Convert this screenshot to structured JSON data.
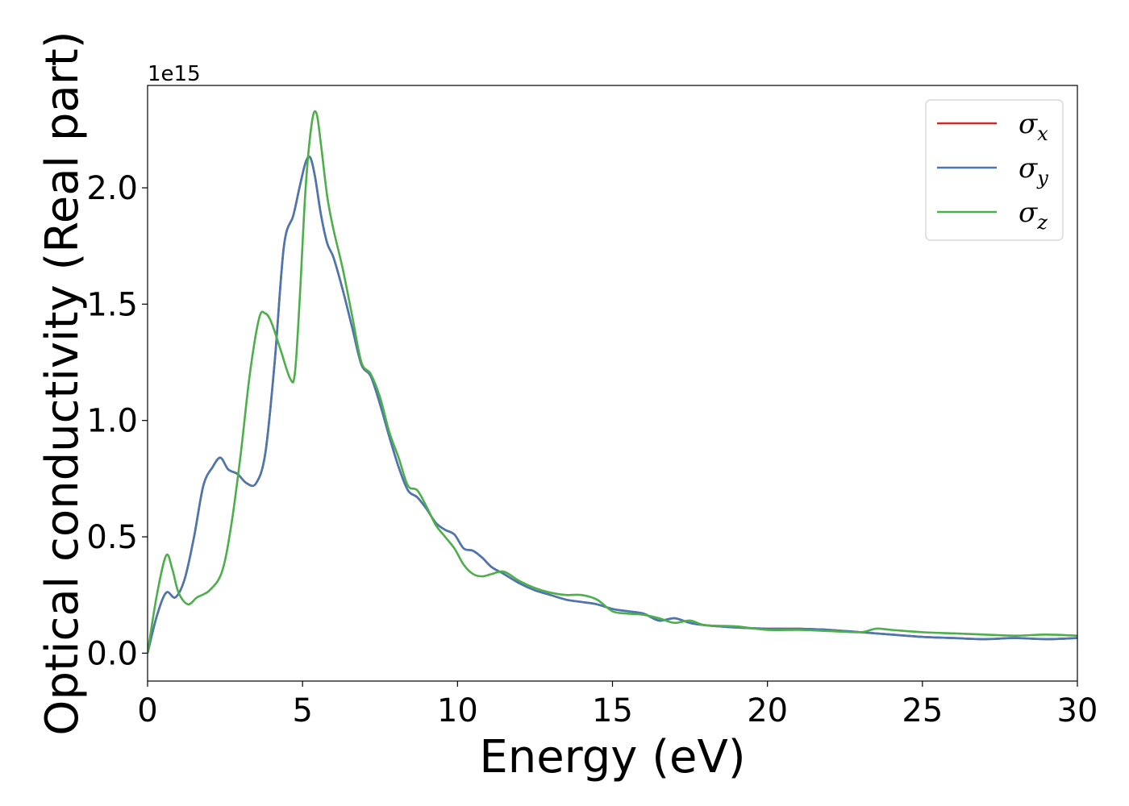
{
  "chart_data": {
    "type": "line",
    "xlabel": "Energy (eV)",
    "ylabel": "Optical conductivity (Real part)",
    "y_offset_text": "1e15",
    "xlim": [
      0,
      30
    ],
    "ylim": [
      -0.12,
      2.44
    ],
    "x_ticks": [
      0,
      5,
      10,
      15,
      20,
      25,
      30
    ],
    "x_tick_labels": [
      "0",
      "5",
      "10",
      "15",
      "20",
      "25",
      "30"
    ],
    "y_ticks": [
      0.0,
      0.5,
      1.0,
      1.5,
      2.0
    ],
    "y_tick_labels": [
      "0.0",
      "0.5",
      "1.0",
      "1.5",
      "2.0"
    ],
    "grid": false,
    "legend_position": "top-right",
    "series": [
      {
        "name": "σ",
        "subscript": "x",
        "color": "#d62728",
        "x": [
          0,
          0.3,
          0.6,
          0.9,
          1.2,
          1.5,
          1.8,
          2.1,
          2.35,
          2.6,
          2.9,
          3.2,
          3.5,
          3.8,
          4.1,
          4.4,
          4.7,
          4.9,
          5.1,
          5.25,
          5.4,
          5.6,
          5.8,
          6.0,
          6.3,
          6.6,
          6.9,
          7.2,
          7.5,
          7.8,
          8.1,
          8.4,
          8.7,
          9.0,
          9.3,
          9.6,
          9.9,
          10.2,
          10.5,
          10.8,
          11.1,
          11.5,
          12.0,
          12.5,
          13.0,
          13.5,
          14.0,
          14.5,
          15.0,
          15.5,
          16.0,
          16.5,
          17.0,
          17.5,
          18.0,
          19.0,
          20.0,
          21.0,
          22.0,
          23.0,
          24.0,
          25.0,
          26.0,
          27.0,
          28.0,
          29.0,
          30.0
        ],
        "y": [
          0.0,
          0.16,
          0.26,
          0.24,
          0.32,
          0.5,
          0.72,
          0.8,
          0.84,
          0.79,
          0.77,
          0.73,
          0.73,
          0.86,
          1.25,
          1.75,
          1.88,
          2.0,
          2.11,
          2.13,
          2.05,
          1.88,
          1.76,
          1.7,
          1.56,
          1.4,
          1.24,
          1.19,
          1.07,
          0.93,
          0.8,
          0.7,
          0.67,
          0.62,
          0.56,
          0.53,
          0.51,
          0.45,
          0.44,
          0.41,
          0.37,
          0.34,
          0.3,
          0.27,
          0.25,
          0.23,
          0.22,
          0.21,
          0.19,
          0.18,
          0.17,
          0.14,
          0.15,
          0.13,
          0.12,
          0.11,
          0.105,
          0.105,
          0.1,
          0.09,
          0.08,
          0.07,
          0.065,
          0.06,
          0.065,
          0.06,
          0.065
        ]
      },
      {
        "name": "σ",
        "subscript": "y",
        "color": "#4878b4",
        "x": [
          0,
          0.3,
          0.6,
          0.9,
          1.2,
          1.5,
          1.8,
          2.1,
          2.35,
          2.6,
          2.9,
          3.2,
          3.5,
          3.8,
          4.1,
          4.4,
          4.7,
          4.9,
          5.1,
          5.25,
          5.4,
          5.6,
          5.8,
          6.0,
          6.3,
          6.6,
          6.9,
          7.2,
          7.5,
          7.8,
          8.1,
          8.4,
          8.7,
          9.0,
          9.3,
          9.6,
          9.9,
          10.2,
          10.5,
          10.8,
          11.1,
          11.5,
          12.0,
          12.5,
          13.0,
          13.5,
          14.0,
          14.5,
          15.0,
          15.5,
          16.0,
          16.5,
          17.0,
          17.5,
          18.0,
          19.0,
          20.0,
          21.0,
          22.0,
          23.0,
          24.0,
          25.0,
          26.0,
          27.0,
          28.0,
          29.0,
          30.0
        ],
        "y": [
          0.0,
          0.16,
          0.26,
          0.24,
          0.32,
          0.5,
          0.72,
          0.8,
          0.84,
          0.79,
          0.77,
          0.73,
          0.73,
          0.86,
          1.25,
          1.75,
          1.88,
          2.0,
          2.11,
          2.13,
          2.05,
          1.88,
          1.76,
          1.7,
          1.56,
          1.4,
          1.24,
          1.19,
          1.07,
          0.93,
          0.8,
          0.7,
          0.67,
          0.62,
          0.56,
          0.53,
          0.51,
          0.45,
          0.44,
          0.41,
          0.37,
          0.34,
          0.3,
          0.27,
          0.25,
          0.23,
          0.22,
          0.21,
          0.19,
          0.18,
          0.17,
          0.14,
          0.15,
          0.13,
          0.12,
          0.11,
          0.105,
          0.105,
          0.1,
          0.09,
          0.08,
          0.07,
          0.065,
          0.06,
          0.065,
          0.06,
          0.065
        ]
      },
      {
        "name": "σ",
        "subscript": "z",
        "color": "#4daf4a",
        "x": [
          0,
          0.3,
          0.6,
          0.8,
          1.0,
          1.3,
          1.6,
          2.0,
          2.4,
          2.7,
          3.0,
          3.3,
          3.6,
          3.8,
          4.0,
          4.3,
          4.6,
          4.75,
          4.9,
          5.1,
          5.3,
          5.45,
          5.6,
          5.8,
          6.0,
          6.3,
          6.6,
          6.9,
          7.2,
          7.5,
          7.8,
          8.1,
          8.4,
          8.7,
          9.0,
          9.3,
          9.6,
          9.9,
          10.2,
          10.5,
          10.8,
          11.1,
          11.5,
          12.0,
          12.5,
          13.0,
          13.5,
          14.0,
          14.5,
          15.0,
          15.5,
          16.0,
          16.5,
          17.0,
          17.5,
          18.0,
          19.0,
          20.0,
          21.0,
          22.0,
          23.0,
          23.5,
          24.0,
          25.0,
          26.0,
          27.0,
          28.0,
          29.0,
          30.0
        ],
        "y": [
          0.0,
          0.25,
          0.42,
          0.36,
          0.26,
          0.21,
          0.24,
          0.27,
          0.35,
          0.55,
          0.85,
          1.2,
          1.44,
          1.46,
          1.42,
          1.3,
          1.18,
          1.2,
          1.5,
          2.0,
          2.28,
          2.32,
          2.18,
          1.96,
          1.82,
          1.65,
          1.45,
          1.25,
          1.2,
          1.1,
          0.95,
          0.84,
          0.72,
          0.7,
          0.63,
          0.55,
          0.5,
          0.45,
          0.38,
          0.34,
          0.33,
          0.34,
          0.35,
          0.31,
          0.28,
          0.26,
          0.25,
          0.25,
          0.23,
          0.18,
          0.17,
          0.165,
          0.15,
          0.13,
          0.14,
          0.12,
          0.115,
          0.1,
          0.1,
          0.095,
          0.09,
          0.105,
          0.1,
          0.09,
          0.085,
          0.08,
          0.075,
          0.08,
          0.075
        ]
      }
    ]
  }
}
